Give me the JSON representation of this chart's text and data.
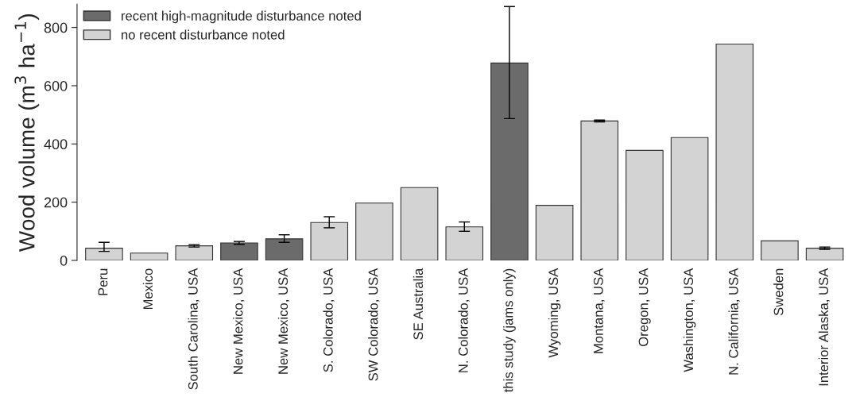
{
  "chart_data": {
    "type": "bar",
    "ylabel": "Wood volume (m$^{3}$ ha$^{−1}$)",
    "categories": [
      "Peru",
      "Mexico",
      "South Carolina, USA",
      "New Mexico, USA",
      "New Mexico, USA",
      "S. Colorado, USA",
      "SW Colorado, USA",
      "SE Australia",
      "N. Colorado, USA",
      "this study (jams only)",
      "Wyoming, USA",
      "Montana, USA",
      "Oregon, USA",
      "Washington, USA",
      "N. California, USA",
      "Sweden",
      "Interior Alaska, USA"
    ],
    "series": [
      {
        "name": "recent high-magnitude disturbance noted",
        "color": "#6b6b6b",
        "values": [
          null,
          null,
          null,
          60,
          74,
          null,
          null,
          null,
          null,
          678,
          null,
          null,
          null,
          null,
          null,
          null,
          null
        ],
        "errors": [
          null,
          null,
          null,
          [
            55,
            65
          ],
          [
            62,
            88
          ],
          null,
          null,
          null,
          null,
          [
            487,
            872
          ],
          null,
          null,
          null,
          null,
          null,
          null,
          null
        ]
      },
      {
        "name": "no recent disturbance noted",
        "color": "#d3d3d3",
        "values": [
          42,
          25,
          50,
          null,
          null,
          130,
          197,
          250,
          115,
          null,
          189,
          479,
          378,
          422,
          743,
          67,
          42
        ],
        "errors": [
          [
            31,
            62
          ],
          null,
          [
            46,
            54
          ],
          null,
          null,
          [
            112,
            150
          ],
          null,
          null,
          [
            100,
            132
          ],
          null,
          null,
          [
            476,
            482
          ],
          null,
          null,
          null,
          null,
          [
            38,
            46
          ]
        ]
      }
    ],
    "ylim": [
      0,
      880
    ],
    "yticks": [
      0,
      200,
      400,
      600,
      800
    ],
    "legend": "top left",
    "grid": false
  }
}
